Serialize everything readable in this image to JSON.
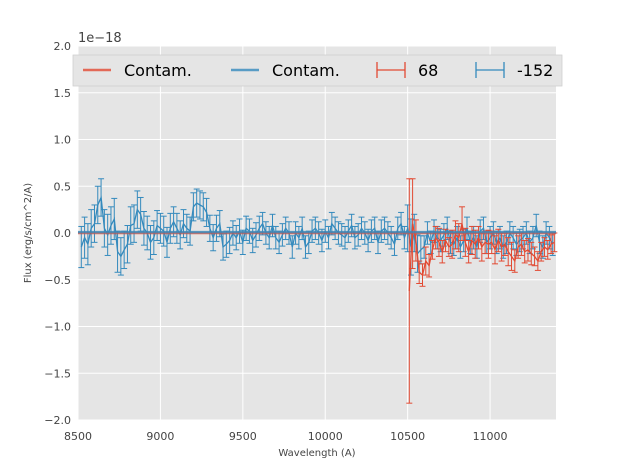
{
  "colors": {
    "red": "#E24A33",
    "blue": "#348ABD",
    "background": "#E5E5E5",
    "grid": "#FFFFFF"
  },
  "chart_data": {
    "type": "line",
    "title": "",
    "xlabel": "Wavelength (A)",
    "ylabel": "Flux (erg/s/cm^2/A)",
    "offset_text": "1e−18",
    "xlim": [
      8500,
      11400
    ],
    "ylim": [
      -2.0,
      2.0
    ],
    "grid": true,
    "x_ticks": [
      8500,
      9000,
      9500,
      10000,
      10500,
      11000
    ],
    "x_tick_labels": [
      "8500",
      "9000",
      "9500",
      "10000",
      "10500",
      "11000"
    ],
    "y_ticks": [
      -2.0,
      -1.5,
      -1.0,
      -0.5,
      0.0,
      0.5,
      1.0,
      1.5,
      2.0
    ],
    "y_tick_labels": [
      "−2.0",
      "−1.5",
      "−1.0",
      "−0.5",
      "0.0",
      "0.5",
      "1.0",
      "1.5",
      "2.0"
    ],
    "legend_position": "top",
    "legend": [
      "Contam.",
      "Contam.",
      "68",
      "-152"
    ],
    "series": [
      {
        "name": "Contam.",
        "kind": "line",
        "color": "#E24A33",
        "x": [
          8500,
          11400
        ],
        "y": [
          0.0,
          0.0
        ]
      },
      {
        "name": "Contam.",
        "kind": "line",
        "color": "#348ABD",
        "x": [
          8500,
          11400
        ],
        "y": [
          0.01,
          0.01
        ]
      },
      {
        "name": "68",
        "kind": "errorbar",
        "color": "#E24A33",
        "x": [
          10510,
          10530,
          10550,
          10570,
          10590,
          10610,
          10630,
          10650,
          10670,
          10690,
          10710,
          10730,
          10750,
          10770,
          10790,
          10810,
          10830,
          10850,
          10870,
          10890,
          10910,
          10930,
          10950,
          10970,
          10990,
          11010,
          11030,
          11050,
          11070,
          11090,
          11110,
          11130,
          11150,
          11170,
          11190,
          11210,
          11230,
          11250,
          11270,
          11290,
          11310,
          11330,
          11350,
          11370,
          11390
        ],
        "y": [
          -0.62,
          0.1,
          -0.08,
          -0.42,
          -0.45,
          -0.3,
          -0.35,
          -0.18,
          -0.05,
          -0.1,
          -0.2,
          -0.08,
          -0.15,
          -0.12,
          -0.02,
          -0.05,
          0.1,
          -0.1,
          -0.2,
          -0.08,
          -0.12,
          -0.05,
          -0.15,
          -0.1,
          -0.12,
          -0.1,
          -0.18,
          -0.08,
          -0.15,
          -0.12,
          -0.2,
          -0.25,
          -0.3,
          -0.15,
          -0.12,
          -0.2,
          -0.18,
          -0.22,
          -0.25,
          -0.3,
          -0.2,
          -0.15,
          -0.18,
          -0.12,
          -0.1
        ],
        "yerr": [
          1.2,
          0.48,
          0.22,
          0.12,
          0.12,
          0.15,
          0.12,
          0.1,
          0.12,
          0.15,
          0.12,
          0.12,
          0.1,
          0.15,
          0.15,
          0.15,
          0.18,
          0.15,
          0.12,
          0.15,
          0.15,
          0.12,
          0.15,
          0.12,
          0.15,
          0.12,
          0.15,
          0.12,
          0.15,
          0.12,
          0.15,
          0.15,
          0.12,
          0.12,
          0.12,
          0.12,
          0.12,
          0.12,
          0.1,
          0.1,
          0.1,
          0.1,
          0.1,
          0.1,
          0.1
        ]
      },
      {
        "name": "-152",
        "kind": "errorbar",
        "color": "#348ABD",
        "x": [
          8520,
          8540,
          8560,
          8580,
          8600,
          8620,
          8640,
          8660,
          8680,
          8700,
          8720,
          8740,
          8760,
          8780,
          8800,
          8820,
          8840,
          8860,
          8880,
          8900,
          8920,
          8940,
          8960,
          8980,
          9000,
          9020,
          9040,
          9060,
          9080,
          9100,
          9120,
          9140,
          9160,
          9180,
          9200,
          9220,
          9240,
          9260,
          9280,
          9300,
          9320,
          9340,
          9360,
          9380,
          9400,
          9420,
          9440,
          9460,
          9480,
          9500,
          9520,
          9540,
          9560,
          9580,
          9600,
          9620,
          9640,
          9660,
          9680,
          9700,
          9720,
          9740,
          9760,
          9780,
          9800,
          9820,
          9840,
          9860,
          9880,
          9900,
          9920,
          9940,
          9960,
          9980,
          10000,
          10020,
          10040,
          10060,
          10080,
          10100,
          10120,
          10140,
          10160,
          10180,
          10200,
          10220,
          10240,
          10260,
          10280,
          10300,
          10320,
          10340,
          10360,
          10380,
          10400,
          10420,
          10440,
          10460,
          10480,
          10500,
          10520,
          10540,
          10560,
          10580,
          10600,
          10620,
          10640,
          10660,
          10680,
          10700,
          10720,
          10740,
          10760,
          10780,
          10800,
          10820,
          10840,
          10860,
          10880,
          10900,
          10920,
          10940,
          10960,
          10980,
          11000,
          11020,
          11040,
          11060,
          11080,
          11100,
          11120,
          11140,
          11160,
          11180,
          11200,
          11220,
          11240,
          11260,
          11280,
          11300,
          11320,
          11340,
          11360,
          11380
        ],
        "y": [
          -0.15,
          -0.05,
          -0.12,
          0.05,
          0.1,
          0.3,
          0.38,
          0.05,
          -0.02,
          0.08,
          0.15,
          -0.2,
          -0.25,
          -0.18,
          -0.12,
          0.08,
          0.1,
          0.25,
          0.2,
          0.05,
          0.0,
          -0.1,
          -0.05,
          0.08,
          0.05,
          0.02,
          -0.1,
          0.05,
          0.12,
          0.05,
          -0.02,
          0.1,
          0.05,
          0.02,
          0.28,
          0.32,
          0.3,
          0.28,
          0.22,
          0.05,
          -0.05,
          0.05,
          0.1,
          -0.15,
          -0.12,
          -0.08,
          0.0,
          -0.05,
          0.02,
          -0.1,
          0.05,
          0.02,
          -0.08,
          -0.02,
          0.05,
          0.1,
          0.0,
          -0.05,
          0.08,
          -0.05,
          -0.1,
          -0.02,
          0.05,
          0.0,
          -0.15,
          0.0,
          -0.05,
          0.05,
          -0.15,
          -0.1,
          0.02,
          0.05,
          0.0,
          -0.08,
          0.02,
          -0.05,
          0.1,
          0.05,
          0.0,
          -0.02,
          -0.05,
          0.02,
          0.08,
          -0.05,
          -0.02,
          0.05,
          0.0,
          -0.08,
          0.02,
          0.05,
          -0.1,
          0.02,
          0.05,
          0.0,
          -0.05,
          -0.12,
          0.05,
          0.1,
          -0.05,
          0.05,
          -0.15,
          0.0,
          -0.22,
          -0.18,
          -0.15,
          0.0,
          -0.1,
          0.02,
          -0.05,
          -0.08,
          -0.02,
          0.05,
          -0.1,
          -0.12,
          -0.05,
          -0.15,
          -0.08,
          0.05,
          -0.1,
          -0.05,
          -0.15,
          0.02,
          0.05,
          -0.1,
          -0.05,
          0.0,
          -0.1,
          -0.05,
          -0.15,
          -0.1,
          0.0,
          -0.05,
          -0.12,
          -0.08,
          -0.05,
          0.0,
          -0.1,
          -0.05,
          0.08,
          -0.1,
          -0.15,
          0.0,
          -0.05,
          -0.12
        ],
        "yerr": [
          0.22,
          0.22,
          0.22,
          0.2,
          0.2,
          0.2,
          0.2,
          0.2,
          0.22,
          0.2,
          0.22,
          0.22,
          0.2,
          0.2,
          0.2,
          0.2,
          0.2,
          0.2,
          0.18,
          0.18,
          0.18,
          0.18,
          0.18,
          0.16,
          0.16,
          0.16,
          0.16,
          0.16,
          0.16,
          0.16,
          0.15,
          0.15,
          0.15,
          0.15,
          0.15,
          0.15,
          0.15,
          0.15,
          0.15,
          0.14,
          0.14,
          0.14,
          0.14,
          0.14,
          0.14,
          0.14,
          0.13,
          0.13,
          0.13,
          0.13,
          0.13,
          0.13,
          0.13,
          0.13,
          0.13,
          0.12,
          0.12,
          0.12,
          0.12,
          0.12,
          0.12,
          0.12,
          0.12,
          0.12,
          0.12,
          0.12,
          0.12,
          0.12,
          0.12,
          0.12,
          0.12,
          0.12,
          0.12,
          0.12,
          0.12,
          0.12,
          0.12,
          0.12,
          0.12,
          0.12,
          0.12,
          0.12,
          0.12,
          0.12,
          0.12,
          0.12,
          0.12,
          0.12,
          0.12,
          0.12,
          0.12,
          0.12,
          0.12,
          0.12,
          0.12,
          0.12,
          0.12,
          0.12,
          0.12,
          0.25,
          0.3,
          0.2,
          0.2,
          0.15,
          0.12,
          0.12,
          0.12,
          0.12,
          0.12,
          0.12,
          0.12,
          0.12,
          0.12,
          0.12,
          0.12,
          0.12,
          0.12,
          0.12,
          0.12,
          0.12,
          0.12,
          0.12,
          0.12,
          0.12,
          0.12,
          0.12,
          0.12,
          0.12,
          0.12,
          0.12,
          0.12,
          0.12,
          0.12,
          0.12,
          0.12,
          0.12,
          0.12,
          0.12,
          0.12,
          0.12,
          0.12,
          0.12,
          0.12,
          0.12
        ]
      }
    ]
  }
}
